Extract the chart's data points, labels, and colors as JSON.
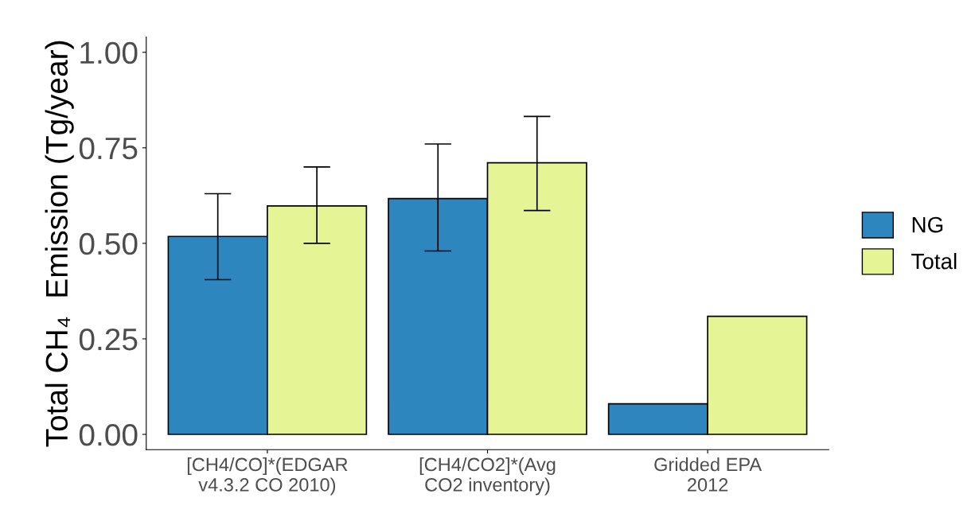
{
  "chart_data": {
    "type": "bar",
    "ylabel": "Total CH₄  Emission (Tg/year)",
    "categories": [
      "[CH4/CO]*(EDGAR\nv4.3.2 CO 2010)",
      "[CH4/CO2]*(Avg\nCO2 inventory)",
      "Gridded EPA\n2012"
    ],
    "series": [
      {
        "name": "NG",
        "color": "#2e86be",
        "values": [
          0.518,
          0.617,
          0.08
        ],
        "errors": [
          [
            0.405,
            0.63
          ],
          [
            0.48,
            0.76
          ],
          null
        ]
      },
      {
        "name": "Total",
        "color": "#e5f595",
        "values": [
          0.598,
          0.711,
          0.309
        ],
        "errors": [
          [
            0.5,
            0.7
          ],
          [
            0.586,
            0.832
          ],
          null
        ]
      }
    ],
    "ylim": [
      -0.04,
      1.04
    ],
    "yticks": [
      {
        "value": 0,
        "label": "0.00"
      },
      {
        "value": 0.25,
        "label": "0.25"
      },
      {
        "value": 0.5,
        "label": "0.50"
      },
      {
        "value": 0.75,
        "label": "0.75"
      },
      {
        "value": 1,
        "label": "1.00"
      }
    ],
    "grid": false,
    "legend": "right"
  }
}
